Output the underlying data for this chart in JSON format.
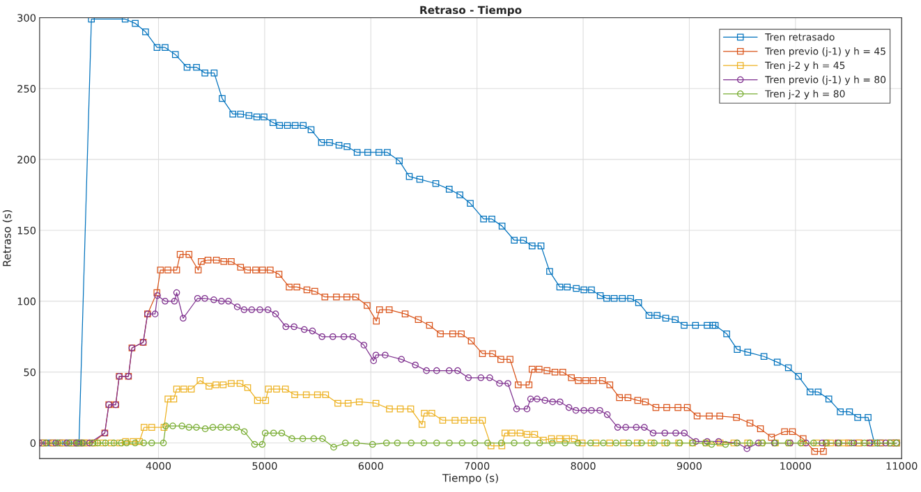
{
  "chart_data": {
    "type": "line",
    "title": "Retraso - Tiempo",
    "xlabel": "Tiempo (s)",
    "ylabel": "Retraso (s)",
    "xlim": [
      2880,
      11000
    ],
    "xticks": [
      4000,
      5000,
      6000,
      7000,
      8000,
      9000,
      10000,
      11000
    ],
    "ylim": [
      -11,
      300
    ],
    "yticks": [
      0,
      50,
      100,
      150,
      200,
      250,
      300
    ],
    "grid": true,
    "legend": "top right",
    "series": [
      {
        "name": "Tren retrasado",
        "color": "#0072bd",
        "marker": "square",
        "x": [
          2895,
          2985,
          3070,
          3150,
          3210,
          3251,
          3368,
          3686,
          3781,
          3878,
          3986,
          4062,
          4159,
          4269,
          4358,
          4437,
          4524,
          4600,
          4700,
          4773,
          4852,
          4926,
          4994,
          5078,
          5140,
          5214,
          5287,
          5363,
          5437,
          5535,
          5611,
          5700,
          5776,
          5871,
          5971,
          6076,
          6155,
          6268,
          6362,
          6461,
          6612,
          6738,
          6839,
          6937,
          7062,
          7140,
          7236,
          7351,
          7438,
          7519,
          7603,
          7684,
          7780,
          7850,
          7935,
          8007,
          8078,
          8161,
          8222,
          8292,
          8369,
          8447,
          8522,
          8620,
          8696,
          8778,
          8867,
          8951,
          9058,
          9168,
          9222,
          9244,
          9352,
          9451,
          9550,
          9703,
          9828,
          9933,
          10028,
          10137,
          10213,
          10314,
          10422,
          10509,
          10586,
          10684,
          10743,
          10800,
          10900,
          10951
        ],
        "values": [
          0,
          0,
          0,
          0,
          0,
          0,
          299,
          299,
          296,
          290,
          279,
          279,
          274,
          265,
          265,
          261,
          261,
          243,
          232,
          232,
          231,
          230,
          230,
          226,
          224,
          224,
          224,
          224,
          221,
          212,
          212,
          210,
          209,
          205,
          205,
          205,
          205,
          199,
          188,
          186,
          183,
          179,
          175,
          169,
          158,
          158,
          153,
          143,
          143,
          139,
          139,
          121,
          110,
          110,
          109,
          108,
          108,
          104,
          102,
          102,
          102,
          102,
          99,
          90,
          90,
          88,
          87,
          83,
          83,
          83,
          83,
          83,
          77,
          66,
          64,
          61,
          57,
          53,
          47,
          36,
          36,
          31,
          22,
          22,
          18,
          18,
          0,
          0,
          0,
          0
        ]
      },
      {
        "name": "Tren previo (j-1) y h = 45",
        "color": "#d95319",
        "marker": "square",
        "x": [
          2910,
          3005,
          3090,
          3175,
          3235,
          3300,
          3376,
          3494,
          3532,
          3597,
          3630,
          3717,
          3750,
          3856,
          3897,
          3985,
          4018,
          4088,
          4171,
          4204,
          4287,
          4374,
          4403,
          4466,
          4545,
          4615,
          4685,
          4773,
          4838,
          4915,
          4980,
          5052,
          5135,
          5231,
          5303,
          5398,
          5472,
          5567,
          5676,
          5774,
          5858,
          5965,
          6052,
          6082,
          6173,
          6323,
          6447,
          6552,
          6655,
          6771,
          6852,
          6946,
          7051,
          7147,
          7224,
          7311,
          7388,
          7490,
          7519,
          7585,
          7659,
          7734,
          7808,
          7889,
          7954,
          8024,
          8094,
          8182,
          8251,
          8342,
          8422,
          8514,
          8586,
          8685,
          8787,
          8893,
          8981,
          9073,
          9188,
          9287,
          9444,
          9571,
          9670,
          9774,
          9897,
          9971,
          10072,
          10180,
          10263,
          10289,
          10400,
          10500,
          10600,
          10700,
          10800,
          10900,
          10951
        ],
        "values": [
          0,
          0,
          0,
          0,
          0,
          0,
          0,
          7,
          27,
          27,
          47,
          47,
          67,
          71,
          91,
          106,
          122,
          122,
          122,
          133,
          133,
          122,
          128,
          129,
          129,
          128,
          128,
          124,
          122,
          122,
          122,
          122,
          119,
          110,
          110,
          108,
          107,
          103,
          103,
          103,
          103,
          97,
          86,
          94,
          94,
          91,
          87,
          83,
          77,
          77,
          77,
          72,
          63,
          63,
          59,
          59,
          41,
          41,
          52,
          52,
          51,
          50,
          50,
          46,
          44,
          44,
          44,
          44,
          41,
          32,
          32,
          30,
          29,
          25,
          25,
          25,
          25,
          19,
          19,
          19,
          18,
          14,
          10,
          4,
          8,
          8,
          3,
          -6,
          -6,
          0,
          0,
          0,
          0,
          0,
          0,
          0,
          0
        ]
      },
      {
        "name": "Tren j-2 y h = 45",
        "color": "#edb120",
        "marker": "square",
        "x": [
          2925,
          3020,
          3110,
          3190,
          3260,
          3320,
          3400,
          3475,
          3555,
          3635,
          3690,
          3760,
          3820,
          3864,
          3936,
          4052,
          4089,
          4144,
          4171,
          4239,
          4309,
          4392,
          4475,
          4541,
          4609,
          4685,
          4768,
          4840,
          4932,
          5009,
          5035,
          5112,
          5195,
          5283,
          5392,
          5497,
          5574,
          5689,
          5786,
          5891,
          6048,
          6175,
          6277,
          6376,
          6482,
          6504,
          6574,
          6677,
          6793,
          6880,
          6968,
          7051,
          7132,
          7234,
          7263,
          7329,
          7406,
          7471,
          7543,
          7625,
          7701,
          7778,
          7843,
          7916,
          7990,
          8120,
          8250,
          8380,
          8510,
          8640,
          8770,
          8900,
          9030,
          9160,
          9290,
          9420,
          9550,
          9680,
          9810,
          9940,
          10070,
          10200,
          10330,
          10460,
          10590,
          10720,
          10850,
          10951
        ],
        "values": [
          0,
          0,
          0,
          0,
          0,
          0,
          0,
          0,
          0,
          0,
          1,
          1,
          1,
          11,
          11,
          11,
          31,
          31,
          38,
          38,
          38,
          44,
          40,
          41,
          41,
          42,
          42,
          39,
          30,
          30,
          38,
          38,
          38,
          34,
          34,
          34,
          34,
          28,
          28,
          29,
          28,
          24,
          24,
          24,
          13,
          21,
          21,
          16,
          16,
          16,
          16,
          16,
          -2,
          -2,
          7,
          7,
          7,
          6,
          6,
          2,
          3,
          3,
          3,
          3,
          0,
          0,
          0,
          0,
          0,
          0,
          0,
          0,
          0,
          0,
          0,
          0,
          0,
          0,
          0,
          0,
          0,
          0,
          0,
          0,
          0,
          0,
          0,
          0
        ]
      },
      {
        "name": "Tren previo (j-1) y h = 80",
        "color": "#7e2f8e",
        "marker": "circle",
        "x": [
          2880,
          2945,
          3030,
          3135,
          3225,
          3280,
          3350,
          3494,
          3532,
          3597,
          3630,
          3717,
          3750,
          3856,
          3897,
          3968,
          3990,
          4062,
          4150,
          4171,
          4232,
          4368,
          4436,
          4521,
          4593,
          4659,
          4742,
          4806,
          4878,
          4955,
          5031,
          5103,
          5199,
          5277,
          5373,
          5450,
          5540,
          5642,
          5746,
          5830,
          5935,
          6026,
          6048,
          6135,
          6288,
          6419,
          6524,
          6620,
          6738,
          6818,
          6919,
          7037,
          7120,
          7212,
          7291,
          7373,
          7471,
          7505,
          7566,
          7640,
          7712,
          7782,
          7866,
          7931,
          8007,
          8078,
          8157,
          8227,
          8325,
          8401,
          8500,
          8576,
          8659,
          8769,
          8872,
          8953,
          9062,
          9168,
          9276,
          9451,
          9543,
          9650,
          9800,
          9950,
          10100,
          10250,
          10400,
          10550,
          10700,
          10850,
          10951
        ],
        "values": [
          0,
          0,
          0,
          0,
          0,
          0,
          0,
          7,
          27,
          27,
          47,
          47,
          67,
          71,
          91,
          91,
          104,
          100,
          100,
          106,
          88,
          102,
          102,
          101,
          100,
          100,
          96,
          94,
          94,
          94,
          94,
          91,
          82,
          82,
          80,
          79,
          75,
          75,
          75,
          75,
          69,
          58,
          62,
          62,
          59,
          55,
          51,
          51,
          51,
          51,
          46,
          46,
          46,
          42,
          42,
          24,
          24,
          31,
          31,
          30,
          29,
          29,
          25,
          23,
          23,
          23,
          23,
          20,
          11,
          11,
          11,
          11,
          7,
          7,
          7,
          7,
          1,
          1,
          1,
          0,
          -4,
          0,
          0,
          0,
          0,
          0,
          0,
          0,
          0,
          0,
          0
        ]
      },
      {
        "name": "Tren j-2 y h = 80",
        "color": "#77ac30",
        "marker": "circle",
        "x": [
          2940,
          3050,
          3160,
          3245,
          3290,
          3380,
          3430,
          3500,
          3580,
          3650,
          3700,
          3780,
          3860,
          3936,
          4046,
          4068,
          4134,
          4221,
          4287,
          4357,
          4440,
          4512,
          4587,
          4659,
          4735,
          4808,
          4905,
          4977,
          5005,
          5084,
          5161,
          5256,
          5359,
          5462,
          5545,
          5650,
          5760,
          5863,
          6016,
          6147,
          6250,
          6380,
          6500,
          6620,
          6740,
          6860,
          6980,
          7100,
          7230,
          7350,
          7470,
          7590,
          7710,
          7830,
          7950,
          8070,
          8190,
          8310,
          8430,
          8550,
          8670,
          8790,
          8910,
          9030,
          9150,
          9210,
          9341,
          9450,
          9570,
          9690,
          9810,
          9930,
          10050,
          10170,
          10290,
          10410,
          10530,
          10650,
          10770,
          10890,
          10951
        ],
        "values": [
          0,
          0,
          0,
          0,
          0,
          0,
          0,
          0,
          0,
          0,
          0,
          0,
          0,
          0,
          0,
          12,
          12,
          12,
          11,
          11,
          10,
          11,
          11,
          11,
          11,
          8,
          -1,
          -1,
          7,
          7,
          7,
          3,
          3,
          3,
          3,
          -3,
          0,
          0,
          -1,
          0,
          0,
          0,
          0,
          0,
          0,
          0,
          0,
          0,
          0,
          0,
          0,
          0,
          0,
          0,
          0,
          0,
          0,
          0,
          0,
          0,
          0,
          0,
          0,
          0,
          0,
          -1,
          -1,
          0,
          0,
          0,
          0,
          0,
          0,
          0,
          0,
          0,
          0,
          0,
          0,
          0,
          0
        ]
      }
    ]
  }
}
